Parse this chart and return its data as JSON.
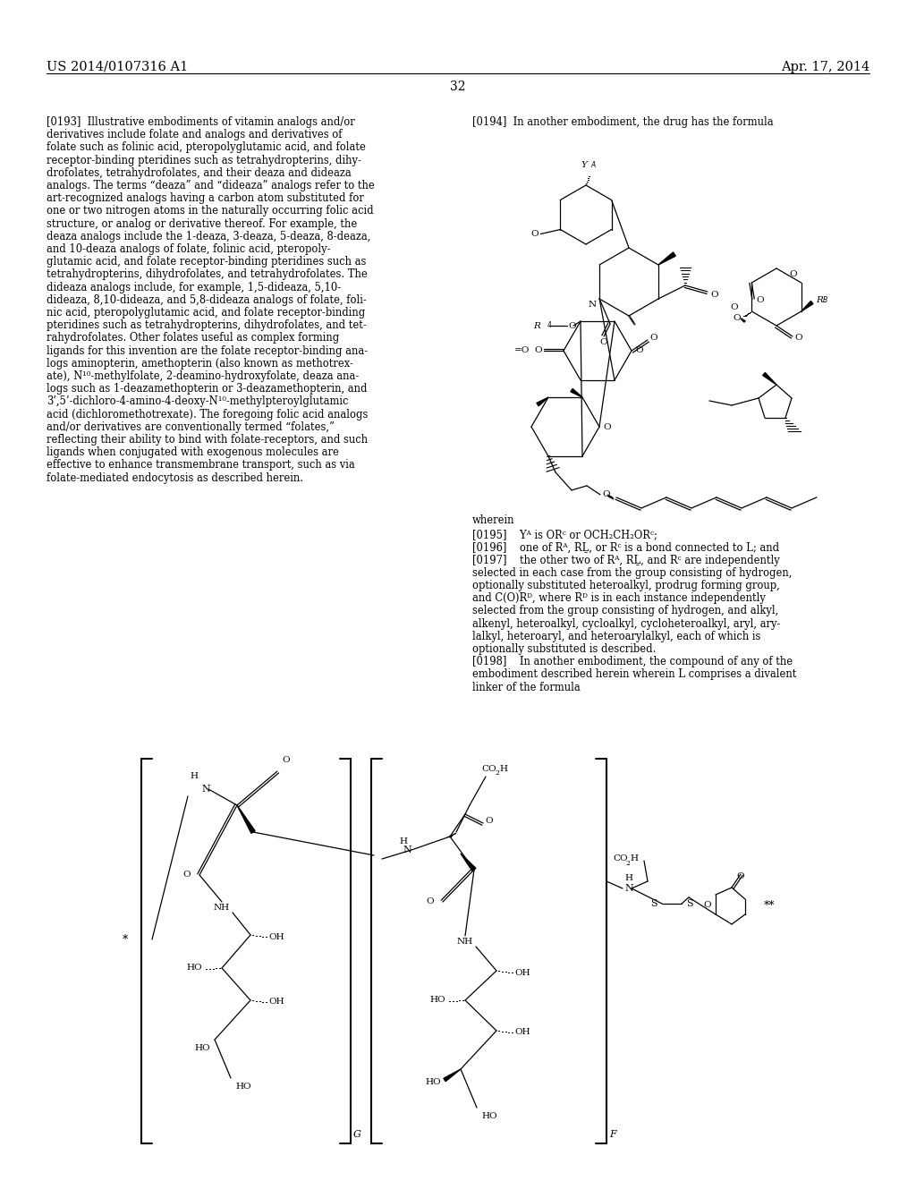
{
  "background_color": "#ffffff",
  "header_left": "US 2014/0107316 A1",
  "header_right": "Apr. 17, 2014",
  "page_num": "32",
  "left_col_lines": [
    "[0193]  Illustrative embodiments of vitamin analogs and/or",
    "derivatives include folate and analogs and derivatives of",
    "folate such as folinic acid, pteropolyglutamic acid, and folate",
    "receptor-binding pteridines such as tetrahydropterins, dihy-",
    "drofolates, tetrahydrofolates, and their deaza and dideaza",
    "analogs. The terms “deaza” and “dideaza” analogs refer to the",
    "art-recognized analogs having a carbon atom substituted for",
    "one or two nitrogen atoms in the naturally occurring folic acid",
    "structure, or analog or derivative thereof. For example, the",
    "deaza analogs include the 1-deaza, 3-deaza, 5-deaza, 8-deaza,",
    "and 10-deaza analogs of folate, folinic acid, pteropoly-",
    "glutamic acid, and folate receptor-binding pteridines such as",
    "tetrahydropterins, dihydrofolates, and tetrahydrofolates. The",
    "dideaza analogs include, for example, 1,5-dideaza, 5,10-",
    "dideaza, 8,10-dideaza, and 5,8-dideaza analogs of folate, foli-",
    "nic acid, pteropolyglutamic acid, and folate receptor-binding",
    "pteridines such as tetrahydropterins, dihydrofolates, and tet-",
    "rahydrofolates. Other folates useful as complex forming",
    "ligands for this invention are the folate receptor-binding ana-",
    "logs aminopterin, amethopterin (also known as methotrex-",
    "ate), N¹⁰-methylfolate, 2-deamino-hydroxyfolate, deaza ana-",
    "logs such as 1-deazamethopterin or 3-deazamethopterin, and",
    "3’,5’-dichloro-4-amino-4-deoxy-N¹⁰-methylpteroylglutamic",
    "acid (dichloromethotrexate). The foregoing folic acid analogs",
    "and/or derivatives are conventionally termed “folates,”",
    "reflecting their ability to bind with folate-receptors, and such",
    "ligands when conjugated with exogenous molecules are",
    "effective to enhance transmembrane transport, such as via",
    "folate-mediated endocytosis as described herein."
  ],
  "right_top_lines": [
    "[0194]  In another embodiment, the drug has the formula"
  ],
  "right_bottom_lines": [
    "wherein",
    "[0195]    Yᴬ is ORᶜ or OCH₂CH₂ORᶜ;",
    "[0196]    one of Rᴬ, RḺ, or Rᶜ is a bond connected to L; and",
    "[0197]    the other two of Rᴬ, RḺ, and Rᶜ are independently",
    "selected in each case from the group consisting of hydrogen,",
    "optionally substituted heteroalkyl, prodrug forming group,",
    "and C(O)Rᴰ, where Rᴰ is in each instance independently",
    "selected from the group consisting of hydrogen, and alkyl,",
    "alkenyl, heteroalkyl, cycloalkyl, cycloheteroalkyl, aryl, ary-",
    "lalkyl, heteroaryl, and heteroarylalkyl, each of which is",
    "optionally substituted is described.",
    "[0198]    In another embodiment, the compound of any of the",
    "embodiment described herein wherein L comprises a divalent",
    "linker of the formula"
  ]
}
